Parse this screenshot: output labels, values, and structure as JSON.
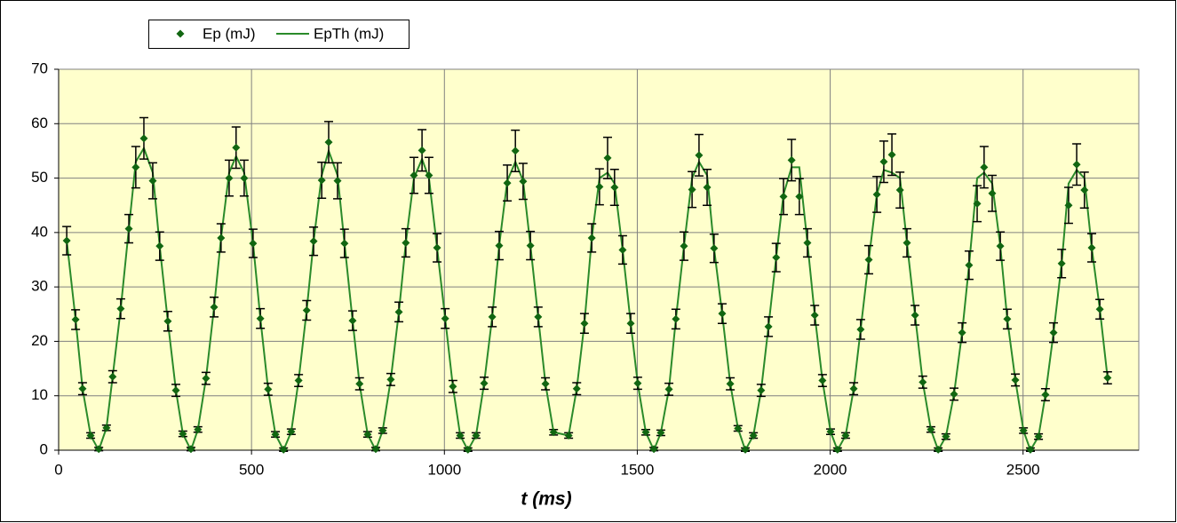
{
  "chart_data": {
    "type": "scatter",
    "xlabel": "t  (ms)",
    "xlim": [
      0,
      2800
    ],
    "xticks": [
      0,
      500,
      1000,
      1500,
      2000,
      2500
    ],
    "ylim": [
      0,
      70
    ],
    "yticks": [
      0,
      10,
      20,
      30,
      40,
      50,
      60,
      70
    ],
    "grid": true,
    "legend": "top-left",
    "x": [
      21,
      44,
      62,
      83,
      104,
      124,
      140,
      161,
      182,
      200,
      221,
      244,
      262,
      283,
      304,
      322,
      343,
      361,
      382,
      403,
      421,
      442,
      460,
      481,
      504,
      523,
      543,
      562,
      583,
      603,
      622,
      643,
      661,
      682,
      700,
      723,
      741,
      762,
      780,
      801,
      822,
      840,
      861,
      882,
      900,
      921,
      942,
      960,
      981,
      1002,
      1022,
      1041,
      1061,
      1082,
      1103,
      1124,
      1142,
      1163,
      1184,
      1204,
      1223,
      1243,
      1262,
      1283,
      1322,
      1343,
      1363,
      1382,
      1402,
      1423,
      1441,
      1462,
      1483,
      1501,
      1522,
      1543,
      1561,
      1582,
      1600,
      1621,
      1642,
      1660,
      1681,
      1699,
      1720,
      1741,
      1761,
      1780,
      1801,
      1821,
      1840,
      1860,
      1879,
      1900,
      1920,
      1941,
      1960,
      1980,
      2001,
      2019,
      2040,
      2061,
      2079,
      2100,
      2121,
      2139,
      2160,
      2181,
      2199,
      2220,
      2240,
      2261,
      2280,
      2300,
      2321,
      2342,
      2360,
      2381,
      2399,
      2420,
      2441,
      2459,
      2480,
      2501,
      2519,
      2540,
      2558,
      2579,
      2600,
      2618,
      2639,
      2659,
      2678,
      2699,
      2719
    ],
    "series": [
      {
        "name": "Ep (mJ)",
        "type": "scatter",
        "color": "#116611",
        "values": [
          38.5,
          24,
          11.3,
          2.7,
          0.2,
          4.1,
          13.5,
          26,
          40.7,
          52,
          57.3,
          49.5,
          37.5,
          23.7,
          11,
          3,
          0.2,
          3.8,
          13.2,
          26.3,
          39,
          50,
          55.6,
          50,
          38,
          24.2,
          11.2,
          2.9,
          0.1,
          3.4,
          12.8,
          25.7,
          38.4,
          49.6,
          56.6,
          49.5,
          38,
          23.8,
          12.2,
          2.9,
          0.2,
          3.6,
          13,
          25.4,
          38.1,
          50.5,
          55.1,
          50.5,
          37.2,
          24.2,
          11.7,
          2.7,
          0.1,
          2.7,
          12.3,
          24.5,
          37.6,
          49.1,
          55,
          49.4,
          37.6,
          24.5,
          12.2,
          3.3,
          2.7,
          11.3,
          23.3,
          39,
          48.4,
          53.7,
          48.3,
          36.8,
          23.3,
          12.3,
          3.3,
          0.2,
          3.2,
          11.2,
          24.1,
          37.5,
          47.9,
          54.2,
          48.3,
          37.1,
          25.1,
          12.2,
          4,
          0.1,
          2.7,
          11,
          22.7,
          35.4,
          46.6,
          53.3,
          46.6,
          38.1,
          24.8,
          12.8,
          3.4,
          0.1,
          2.7,
          11.3,
          22.2,
          35,
          47,
          53,
          54.3,
          47.8,
          38.1,
          24.8,
          12.5,
          3.8,
          0.1,
          2.5,
          10.3,
          21.6,
          34,
          45.3,
          52,
          47.2,
          37.5,
          24.1,
          12.9,
          3.6,
          0.1,
          2.5,
          10.2,
          21.6,
          34.3,
          45,
          52.5,
          47.8,
          37.2,
          25.9,
          13.3
        ],
        "errors": [
          2.6,
          1.8,
          1.1,
          0.5,
          0.3,
          0.5,
          1.1,
          1.8,
          2.6,
          3.8,
          3.8,
          3.3,
          2.6,
          1.8,
          1.1,
          0.5,
          0.3,
          0.5,
          1.1,
          1.8,
          2.6,
          3.3,
          3.8,
          3.3,
          2.6,
          1.8,
          1.1,
          0.5,
          0.3,
          0.5,
          1.1,
          1.8,
          2.6,
          3.3,
          3.8,
          3.3,
          2.6,
          1.8,
          1.1,
          0.5,
          0.3,
          0.5,
          1.1,
          1.8,
          2.6,
          3.3,
          3.8,
          3.3,
          2.6,
          1.8,
          1.1,
          0.5,
          0.3,
          0.5,
          1.1,
          1.8,
          2.6,
          3.3,
          3.8,
          3.3,
          2.6,
          1.8,
          1.1,
          0.5,
          0.5,
          1.1,
          1.8,
          2.6,
          3.3,
          3.8,
          3.3,
          2.6,
          1.8,
          1.1,
          0.5,
          0.3,
          0.5,
          1.1,
          1.8,
          2.6,
          3.3,
          3.8,
          3.3,
          2.6,
          1.8,
          1.1,
          0.5,
          0.3,
          0.5,
          1.1,
          1.8,
          2.6,
          3.3,
          3.8,
          3.3,
          2.6,
          1.8,
          1.1,
          0.5,
          0.3,
          0.5,
          1.1,
          1.8,
          2.6,
          3.3,
          3.8,
          3.8,
          3.3,
          2.6,
          1.8,
          1.1,
          0.5,
          0.3,
          0.5,
          1.1,
          1.8,
          2.6,
          3.3,
          3.8,
          3.3,
          2.6,
          1.8,
          1.1,
          0.5,
          0.3,
          0.5,
          1.1,
          1.8,
          2.6,
          3.3,
          3.8,
          3.3,
          2.6,
          1.8,
          1.1
        ]
      },
      {
        "name": "EpTh (mJ)",
        "type": "line",
        "color": "#2a8a2a",
        "values": [
          38.5,
          24,
          11.3,
          2.7,
          0,
          4.1,
          13.5,
          26,
          40.7,
          53,
          55.5,
          51,
          37.5,
          23.7,
          11,
          3,
          0,
          3.8,
          13.2,
          26.3,
          39,
          51,
          54,
          51,
          38,
          24.2,
          11.2,
          2.9,
          0,
          3.4,
          12.8,
          25.7,
          38.4,
          50.5,
          55,
          50.5,
          38,
          23.8,
          12.2,
          2.9,
          0,
          3.6,
          13,
          25.4,
          38.1,
          50,
          53.5,
          50,
          37.2,
          24.2,
          11.7,
          2.7,
          0,
          2.7,
          12.3,
          24.5,
          37.6,
          49.5,
          53,
          49.5,
          37.6,
          24.5,
          12.2,
          3.3,
          2.7,
          11.3,
          23.3,
          39,
          50,
          51,
          49,
          36.8,
          23.3,
          12.3,
          3.3,
          0,
          3.2,
          11.2,
          24.1,
          37.5,
          50,
          53,
          50.5,
          37.1,
          25.1,
          12.2,
          4,
          0,
          2.7,
          11,
          22.7,
          35.4,
          47,
          52,
          52,
          38.1,
          24.8,
          12.8,
          3.4,
          0,
          2.7,
          11.3,
          22.2,
          35,
          47,
          51.5,
          51,
          50,
          38.1,
          24.8,
          12.5,
          3.8,
          0,
          2.5,
          10.3,
          21.6,
          34,
          50,
          51,
          49,
          37.5,
          24.1,
          12.9,
          3.6,
          0,
          2.5,
          10.2,
          21.6,
          34.3,
          49,
          51.5,
          50,
          37.2,
          25.9,
          13.3
        ]
      }
    ]
  }
}
